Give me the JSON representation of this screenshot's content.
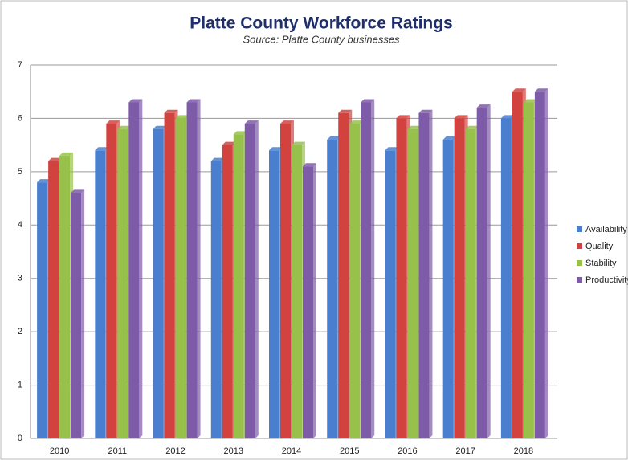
{
  "chart_data": {
    "type": "bar",
    "title": "Platte County Workforce Ratings",
    "subtitle": "Source: Platte County businesses",
    "categories": [
      "2010",
      "2011",
      "2012",
      "2013",
      "2014",
      "2015",
      "2016",
      "2017",
      "2018"
    ],
    "series": [
      {
        "name": "Availability",
        "color": "#4a7fcf",
        "values": [
          4.8,
          5.4,
          5.8,
          5.2,
          5.4,
          5.6,
          5.4,
          5.6,
          6.0
        ]
      },
      {
        "name": "Quality",
        "color": "#d2433f",
        "values": [
          5.2,
          5.9,
          6.1,
          5.5,
          5.9,
          6.1,
          6.0,
          6.0,
          6.5
        ]
      },
      {
        "name": "Stability",
        "color": "#97c14a",
        "values": [
          5.3,
          5.8,
          6.0,
          5.7,
          5.5,
          5.9,
          5.8,
          5.8,
          6.3
        ]
      },
      {
        "name": "Productivity",
        "color": "#7e5ba8",
        "values": [
          4.6,
          6.3,
          6.3,
          5.9,
          5.1,
          6.3,
          6.1,
          6.2,
          6.5
        ]
      }
    ],
    "ylim": [
      0,
      7
    ],
    "yticks": [
      0,
      1,
      2,
      3,
      4,
      5,
      6,
      7
    ],
    "grid": true,
    "legend": "right"
  }
}
